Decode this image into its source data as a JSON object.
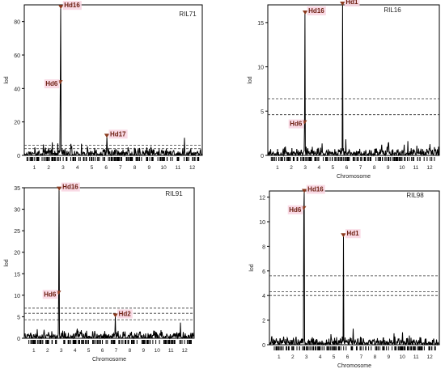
{
  "chart_data": [
    {
      "type": "line",
      "panel": "RIL71",
      "title": "RIL71",
      "ylabel": "lod",
      "xlabel": "",
      "ylim": [
        0,
        90
      ],
      "yticks": [
        0,
        20,
        40,
        60,
        80
      ],
      "chromosomes": [
        "1",
        "2",
        "3",
        "4",
        "5",
        "6",
        "7",
        "8",
        "9",
        "10",
        "11",
        "12"
      ],
      "thresholds": [
        4.0,
        6.0
      ],
      "peaks": [
        {
          "label": "Hd16",
          "chromosome": 3,
          "position": 0.35,
          "lod": 88
        },
        {
          "label": "Hd6",
          "chromosome": 3,
          "position": 0.3,
          "lod": 43
        },
        {
          "label": "Hd17",
          "chromosome": 6,
          "position": 0.55,
          "lod": 11
        }
      ],
      "grid": false,
      "legend": "none"
    },
    {
      "type": "line",
      "panel": "RIL16",
      "title": "RIL16",
      "ylabel": "lod",
      "xlabel": "Chromosome",
      "ylim": [
        0,
        17
      ],
      "yticks": [
        0,
        5,
        10,
        15
      ],
      "chromosomes": [
        "1",
        "2",
        "3",
        "4",
        "5",
        "6",
        "7",
        "8",
        "9",
        "10",
        "11",
        "12"
      ],
      "thresholds": [
        4.6,
        6.4
      ],
      "peaks": [
        {
          "label": "Hd16",
          "chromosome": 3,
          "position": 0.5,
          "lod": 16
        },
        {
          "label": "Hd6",
          "chromosome": 3,
          "position": 0.45,
          "lod": 3.6
        },
        {
          "label": "Hd1",
          "chromosome": 6,
          "position": 0.2,
          "lod": 17
        }
      ],
      "grid": false,
      "legend": "none"
    },
    {
      "type": "line",
      "panel": "RIL91",
      "title": "RIL91",
      "ylabel": "lod",
      "xlabel": "Chromosome",
      "ylim": [
        0,
        35
      ],
      "yticks": [
        0,
        5,
        10,
        15,
        20,
        25,
        30,
        35
      ],
      "chromosomes": [
        "1",
        "2",
        "3",
        "4",
        "5",
        "6",
        "7",
        "8",
        "9",
        "10",
        "11",
        "12"
      ],
      "thresholds": [
        4.3,
        5.8,
        7.0
      ],
      "peaks": [
        {
          "label": "Hd16",
          "chromosome": 3,
          "position": 0.35,
          "lod": 34.5
        },
        {
          "label": "Hd6",
          "chromosome": 3,
          "position": 0.3,
          "lod": 10.3
        },
        {
          "label": "Hd2",
          "chromosome": 7,
          "position": 0.45,
          "lod": 5.0
        }
      ],
      "grid": false,
      "legend": "none"
    },
    {
      "type": "line",
      "panel": "RIL98",
      "title": "RIL98",
      "ylabel": "lod",
      "xlabel": "Chromosome",
      "ylim": [
        0,
        12.5
      ],
      "yticks": [
        0,
        2,
        4,
        6,
        8,
        10,
        12
      ],
      "chromosomes": [
        "1",
        "2",
        "3",
        "4",
        "5",
        "6",
        "7",
        "8",
        "9",
        "10",
        "11",
        "12"
      ],
      "thresholds": [
        4.0,
        4.3,
        5.6
      ],
      "peaks": [
        {
          "label": "Hd16",
          "chromosome": 3,
          "position": 0.35,
          "lod": 12.4
        },
        {
          "label": "Hd6",
          "chromosome": 3,
          "position": 0.3,
          "lod": 11.0
        },
        {
          "label": "Hd1",
          "chromosome": 6,
          "position": 0.2,
          "lod": 8.8
        }
      ],
      "grid": false,
      "legend": "none"
    }
  ],
  "colors": {
    "marker": "#8b3a1e",
    "marker_red": "#c0121c",
    "label_text": "#6b1d0f",
    "label_bg": "#f8d6e2",
    "curve": "#000000",
    "threshold": "#333333",
    "box": "#000000"
  }
}
